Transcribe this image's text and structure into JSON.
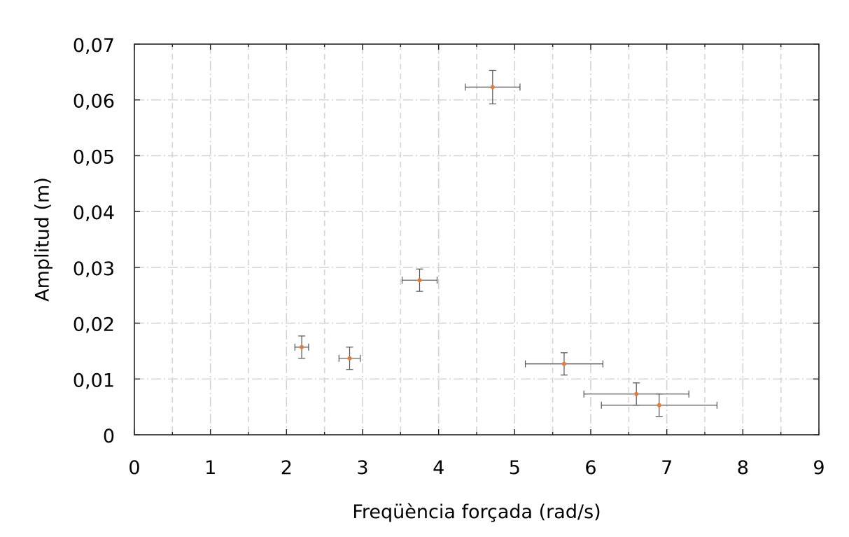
{
  "chart_data": {
    "type": "scatter",
    "title": "",
    "xlabel": "Freqüència forçada (rad/s)",
    "ylabel": "Amplitud (m)",
    "xlim": [
      0,
      9
    ],
    "ylim": [
      0,
      0.07
    ],
    "x_ticks": [
      0,
      1,
      2,
      3,
      4,
      5,
      6,
      7,
      8,
      9
    ],
    "x_tick_labels": [
      "0",
      "1",
      "2",
      "3",
      "4",
      "5",
      "6",
      "7",
      "8",
      "9"
    ],
    "y_ticks": [
      0,
      0.01,
      0.02,
      0.03,
      0.04,
      0.05,
      0.06,
      0.07
    ],
    "y_tick_labels": [
      "0",
      "0,01",
      "0,02",
      "0,03",
      "0,04",
      "0,05",
      "0,06",
      "0,07"
    ],
    "grid": true,
    "legend": "none",
    "marker_color": "#e07b39",
    "errorbar_color": "#555555",
    "points": [
      {
        "x": 2.2,
        "y": 0.0157,
        "xerr": 0.09,
        "yerr": 0.002
      },
      {
        "x": 2.83,
        "y": 0.0137,
        "xerr": 0.14,
        "yerr": 0.002
      },
      {
        "x": 3.75,
        "y": 0.0277,
        "xerr": 0.23,
        "yerr": 0.002
      },
      {
        "x": 4.71,
        "y": 0.0623,
        "xerr": 0.36,
        "yerr": 0.003
      },
      {
        "x": 5.65,
        "y": 0.0127,
        "xerr": 0.51,
        "yerr": 0.002
      },
      {
        "x": 6.6,
        "y": 0.0073,
        "xerr": 0.69,
        "yerr": 0.002
      },
      {
        "x": 6.9,
        "y": 0.0053,
        "xerr": 0.76,
        "yerr": 0.002
      }
    ]
  }
}
